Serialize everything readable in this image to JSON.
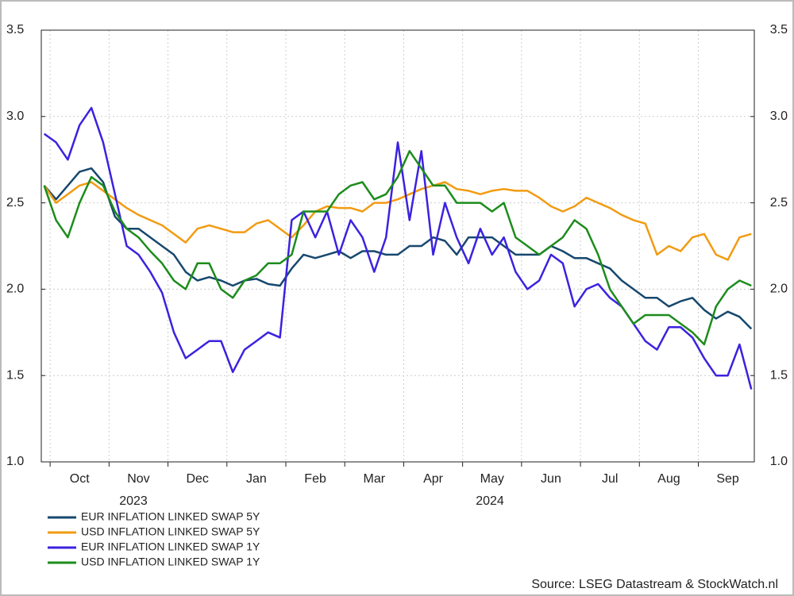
{
  "chart_data": {
    "type": "line",
    "x": [
      -0.1,
      0.1,
      0.3,
      0.5,
      0.7,
      0.9,
      1.1,
      1.3,
      1.5,
      1.7,
      1.9,
      2.1,
      2.3,
      2.5,
      2.7,
      2.9,
      3.1,
      3.3,
      3.5,
      3.7,
      3.9,
      4.1,
      4.3,
      4.5,
      4.7,
      4.9,
      5.1,
      5.3,
      5.5,
      5.7,
      5.9,
      6.1,
      6.3,
      6.5,
      6.7,
      6.9,
      7.1,
      7.3,
      7.5,
      7.7,
      7.9,
      8.1,
      8.3,
      8.5,
      8.7,
      8.9,
      9.1,
      9.3,
      9.5,
      9.7,
      9.9,
      10.1,
      10.3,
      10.5,
      10.7,
      10.9,
      11.1,
      11.3,
      11.5,
      11.7,
      11.9
    ],
    "xlim": [
      -0.15,
      11.95
    ],
    "xticks": [
      {
        "value": 0,
        "label": "Oct"
      },
      {
        "value": 1,
        "label": "Nov"
      },
      {
        "value": 2,
        "label": "Dec"
      },
      {
        "value": 3,
        "label": "Jan"
      },
      {
        "value": 4,
        "label": "Feb"
      },
      {
        "value": 5,
        "label": "Mar"
      },
      {
        "value": 6,
        "label": "Apr"
      },
      {
        "value": 7,
        "label": "May"
      },
      {
        "value": 8,
        "label": "Jun"
      },
      {
        "value": 9,
        "label": "Jul"
      },
      {
        "value": 10,
        "label": "Aug"
      },
      {
        "value": 11,
        "label": "Sep"
      }
    ],
    "year_labels": [
      "2023",
      "2024"
    ],
    "ylim": [
      1.0,
      3.5
    ],
    "yticks": [
      {
        "value": 1.0,
        "label": "1.0"
      },
      1.5,
      {
        "value": 2.0,
        "label": "2.0"
      },
      2.5,
      {
        "value": 3.0,
        "label": "3.0"
      },
      3.5
    ],
    "grid": true,
    "legend": "bottom-left",
    "source": "Source: LSEG Datastream & StockWatch.nl",
    "series": [
      {
        "name": "EUR INFLATION LINKED SWAP 5Y",
        "color": "#17486e",
        "values": [
          2.6,
          2.52,
          2.6,
          2.68,
          2.7,
          2.62,
          2.42,
          2.35,
          2.35,
          2.3,
          2.25,
          2.2,
          2.1,
          2.05,
          2.07,
          2.05,
          2.02,
          2.05,
          2.06,
          2.03,
          2.02,
          2.12,
          2.2,
          2.18,
          2.2,
          2.22,
          2.18,
          2.22,
          2.22,
          2.2,
          2.2,
          2.25,
          2.25,
          2.3,
          2.28,
          2.2,
          2.3,
          2.3,
          2.3,
          2.25,
          2.2,
          2.2,
          2.2,
          2.25,
          2.22,
          2.18,
          2.18,
          2.15,
          2.12,
          2.05,
          2.0,
          1.95,
          1.95,
          1.9,
          1.93,
          1.95,
          1.88,
          1.83,
          1.87,
          1.84,
          1.77
        ]
      },
      {
        "name": "USD INFLATION LINKED SWAP 5Y",
        "color": "#f29b12",
        "values": [
          2.6,
          2.5,
          2.55,
          2.6,
          2.62,
          2.57,
          2.52,
          2.47,
          2.43,
          2.4,
          2.37,
          2.32,
          2.27,
          2.35,
          2.37,
          2.35,
          2.33,
          2.33,
          2.38,
          2.4,
          2.35,
          2.3,
          2.37,
          2.45,
          2.48,
          2.47,
          2.47,
          2.45,
          2.5,
          2.5,
          2.52,
          2.55,
          2.58,
          2.6,
          2.62,
          2.58,
          2.57,
          2.55,
          2.57,
          2.58,
          2.57,
          2.57,
          2.53,
          2.48,
          2.45,
          2.48,
          2.53,
          2.5,
          2.47,
          2.43,
          2.4,
          2.38,
          2.2,
          2.25,
          2.22,
          2.3,
          2.32,
          2.2,
          2.17,
          2.3,
          2.32
        ]
      },
      {
        "name": "EUR INFLATION LINKED SWAP 1Y",
        "color": "#3b22e0",
        "values": [
          2.9,
          2.85,
          2.75,
          2.95,
          3.05,
          2.85,
          2.55,
          2.25,
          2.2,
          2.1,
          1.98,
          1.75,
          1.6,
          1.65,
          1.7,
          1.7,
          1.52,
          1.65,
          1.7,
          1.75,
          1.72,
          2.4,
          2.45,
          2.3,
          2.45,
          2.2,
          2.4,
          2.3,
          2.1,
          2.3,
          2.85,
          2.4,
          2.8,
          2.2,
          2.5,
          2.3,
          2.15,
          2.35,
          2.2,
          2.3,
          2.1,
          2.0,
          2.05,
          2.2,
          2.15,
          1.9,
          2.0,
          2.03,
          1.95,
          1.9,
          1.8,
          1.7,
          1.65,
          1.78,
          1.78,
          1.72,
          1.6,
          1.5,
          1.5,
          1.68,
          1.42
        ]
      },
      {
        "name": "USD INFLATION LINKED SWAP 1Y",
        "color": "#1c8c1c",
        "values": [
          2.6,
          2.4,
          2.3,
          2.5,
          2.65,
          2.6,
          2.45,
          2.35,
          2.3,
          2.22,
          2.15,
          2.05,
          2.0,
          2.15,
          2.15,
          2.0,
          1.95,
          2.05,
          2.08,
          2.15,
          2.15,
          2.2,
          2.45,
          2.45,
          2.45,
          2.55,
          2.6,
          2.62,
          2.52,
          2.55,
          2.65,
          2.8,
          2.7,
          2.6,
          2.6,
          2.5,
          2.5,
          2.5,
          2.45,
          2.5,
          2.3,
          2.25,
          2.2,
          2.25,
          2.3,
          2.4,
          2.35,
          2.2,
          2.0,
          1.9,
          1.8,
          1.85,
          1.85,
          1.85,
          1.8,
          1.75,
          1.68,
          1.9,
          2.0,
          2.05,
          2.02
        ]
      }
    ]
  }
}
